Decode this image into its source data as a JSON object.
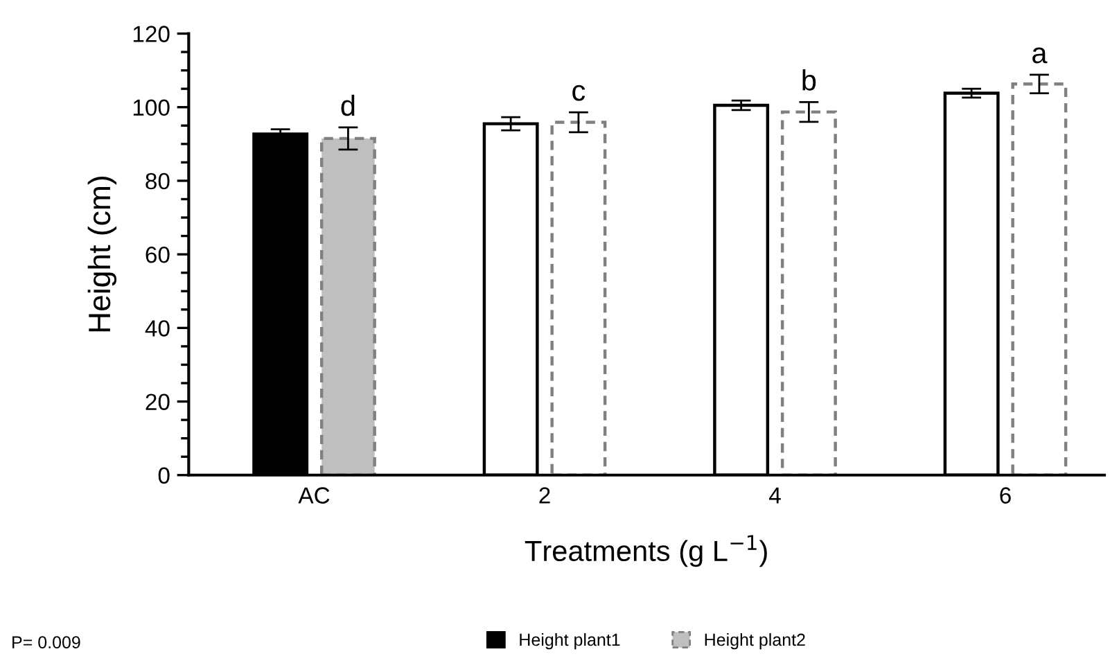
{
  "chart_data": {
    "type": "bar",
    "xlabel": "Treatments (g L$^{−1}$)",
    "ylabel": "Height (cm)",
    "categories": [
      "AC",
      "2",
      "4",
      "6"
    ],
    "series": [
      {
        "name": "Height plant1",
        "color": "#000000",
        "colors": [
          "#000000",
          "#ffffff",
          "#ffffff",
          "#ffffff"
        ],
        "line_style": "solid",
        "values": [
          92.7,
          95.5,
          100.5,
          103.8
        ],
        "errors": [
          1.3,
          1.8,
          1.3,
          1.2
        ]
      },
      {
        "name": "Height plant2",
        "color": "#808080",
        "colors": [
          "#bfbfbf",
          "#ffffff",
          "#ffffff",
          "#ffffff"
        ],
        "line_style": "dashed",
        "values": [
          91.5,
          95.9,
          98.7,
          106.3
        ],
        "errors": [
          3,
          2.7,
          2.7,
          2.5
        ]
      }
    ],
    "ylim": [
      0,
      120
    ],
    "yticks": [
      0,
      20,
      40,
      60,
      80,
      100,
      120
    ],
    "grid": false,
    "legend": "bottom",
    "annotations": [
      "d",
      "c",
      "b",
      "a",
      "P= 0.009"
    ]
  }
}
